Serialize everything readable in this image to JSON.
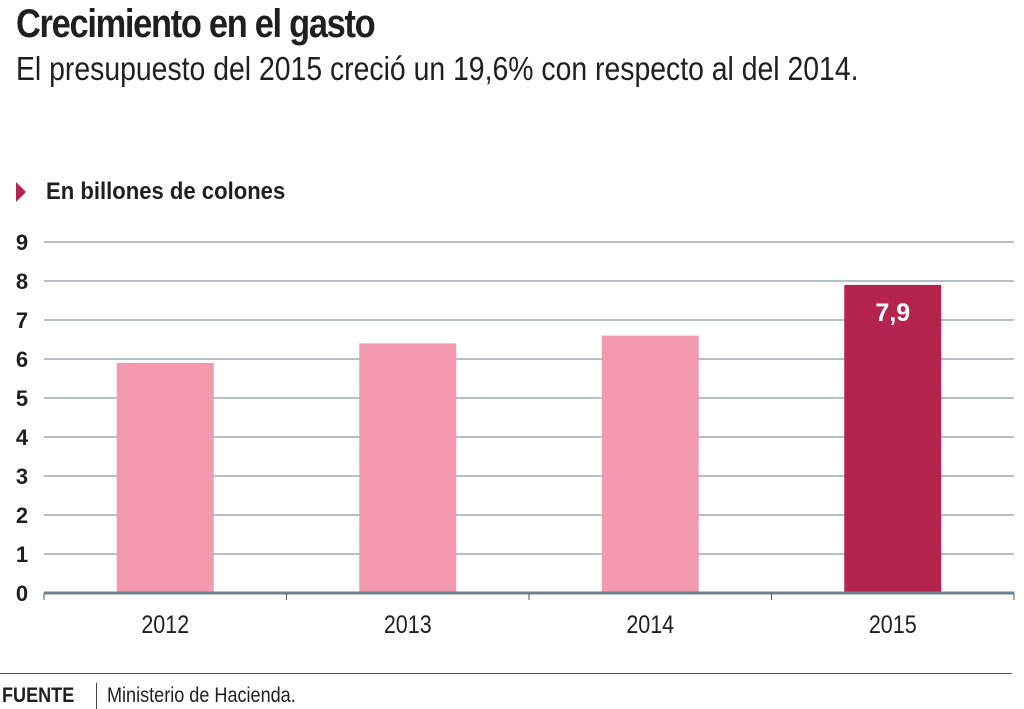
{
  "header": {
    "title": "Crecimiento en el gasto",
    "subtitle": "El presupuesto del 2015 creció un 19,6% con respecto al del 2014."
  },
  "unit_label": "En billones de colones",
  "footer": {
    "label": "FUENTE",
    "source": "Ministerio de Hacienda."
  },
  "colors": {
    "bar": "#f49ab0",
    "highlight": "#b5234f",
    "grid": "#8a9aa6",
    "axis": "#6f8190",
    "accent": "#b5234f"
  },
  "chart_data": {
    "type": "bar",
    "title": "Crecimiento en el gasto",
    "subtitle": "El presupuesto del 2015 creció un 19,6% con respecto al del 2014.",
    "ylabel": "En billones de colones",
    "xlabel": "",
    "categories": [
      "2012",
      "2013",
      "2014",
      "2015"
    ],
    "values": [
      5.9,
      6.4,
      6.6,
      7.9
    ],
    "highlight_index": 3,
    "data_labels": [
      null,
      null,
      null,
      "7,9"
    ],
    "ylim": [
      0,
      9
    ],
    "yticks": [
      "0",
      "1",
      "2",
      "3",
      "4",
      "5",
      "6",
      "7",
      "8",
      "9"
    ],
    "grid": true,
    "legend": "none"
  }
}
